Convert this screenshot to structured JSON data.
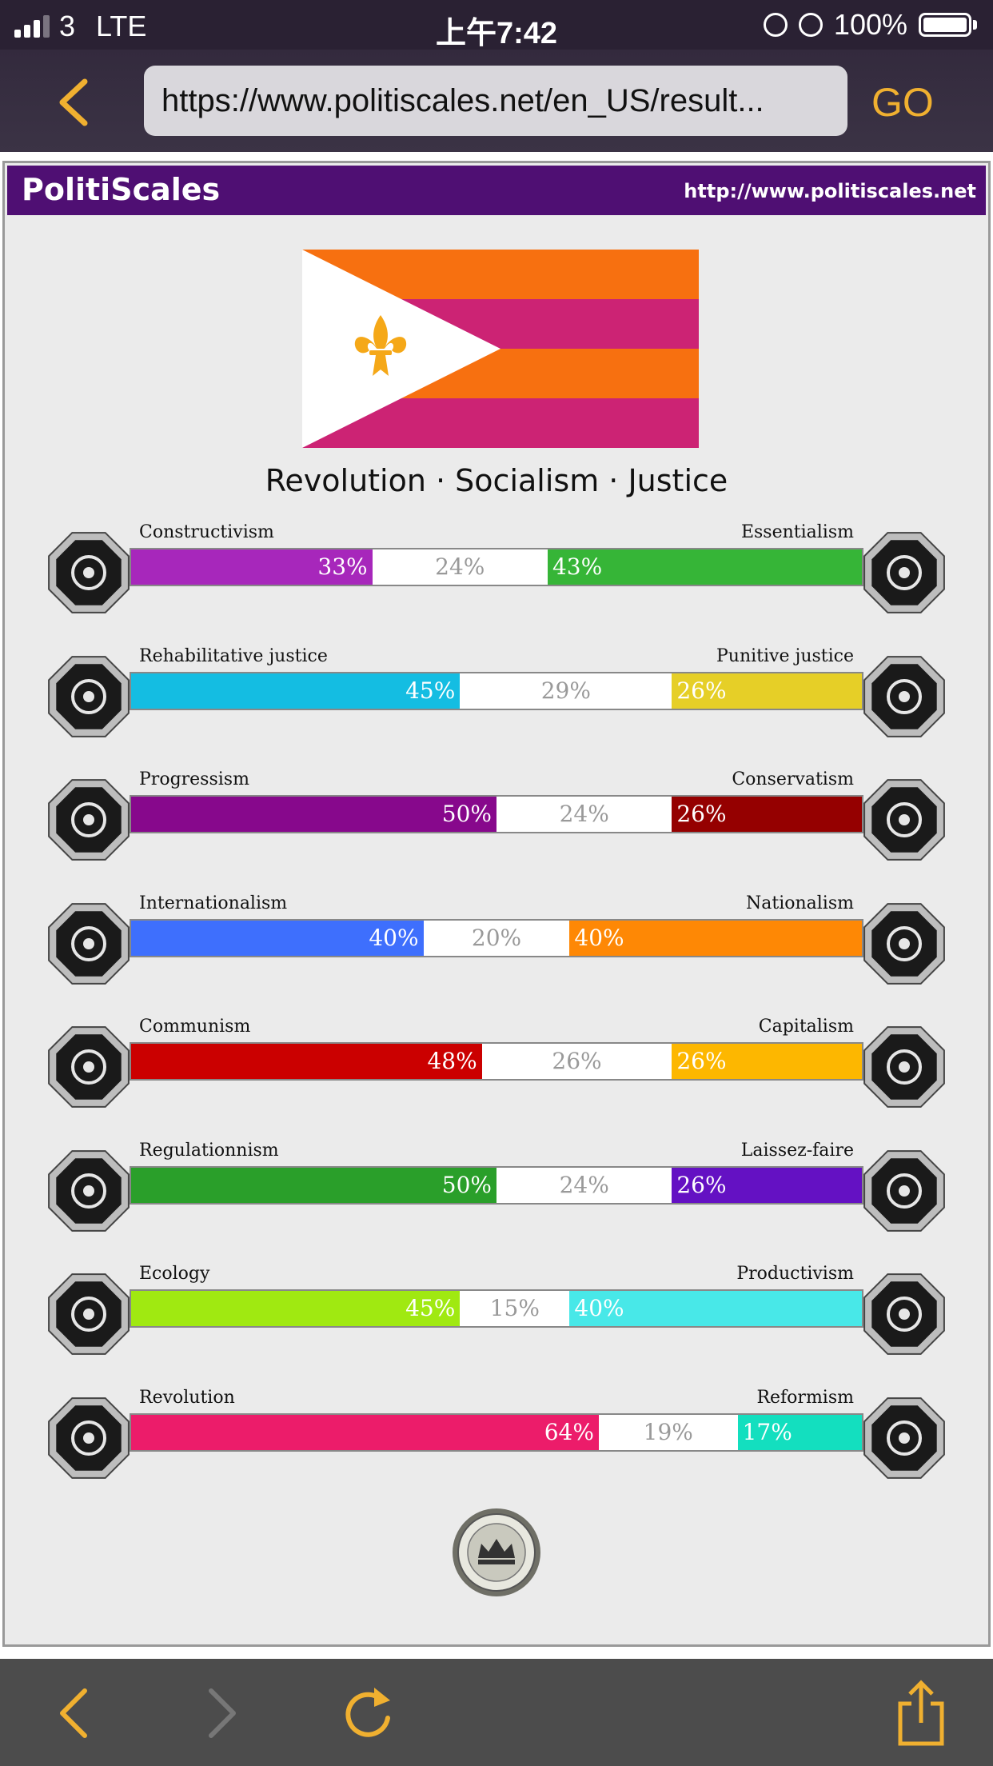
{
  "status_bar": {
    "carrier": "3",
    "network": "LTE",
    "time": "上午7:42",
    "battery": "100%",
    "icons": [
      "signal-icon",
      "orientation-lock-icon",
      "alarm-icon",
      "battery-icon"
    ]
  },
  "browser": {
    "url": "https://www.politiscales.net/en_US/result...",
    "go_label": "GO",
    "icons": [
      "back-chevron-icon",
      "forward-chevron-icon",
      "reload-icon",
      "share-icon"
    ]
  },
  "brand": {
    "name": "PolitiScales",
    "url": "http://www.politiscales.net",
    "color": "#4f0f73"
  },
  "flag": {
    "stripes": [
      "#f77010",
      "#cc2374",
      "#f77010",
      "#cc2374"
    ],
    "triangle": "#ffffff",
    "emblem": "fleur-de-lis-icon",
    "emblem_color": "#f5a818"
  },
  "motto": "Revolution · Socialism · Justice",
  "axes": [
    {
      "left_label": "Constructivism",
      "right_label": "Essentialism",
      "left": 33,
      "middle": 24,
      "right": 43,
      "left_color": "#a727bb",
      "right_color": "#36b537",
      "left_icon": "eye-icon",
      "right_icon": "dna-flower-icon"
    },
    {
      "left_label": "Rehabilitative justice",
      "right_label": "Punitive justice",
      "left": 45,
      "middle": 29,
      "right": 26,
      "left_color": "#14bde2",
      "right_color": "#e6cf27",
      "left_icon": "handshake-icon",
      "right_icon": "prison-bars-icon"
    },
    {
      "left_label": "Progressism",
      "right_label": "Conservatism",
      "left": 50,
      "middle": 24,
      "right": 26,
      "left_color": "#87088c",
      "right_color": "#950000",
      "left_icon": "rocket-icon",
      "right_icon": "quill-icon"
    },
    {
      "left_label": "Internationalism",
      "right_label": "Nationalism",
      "left": 40,
      "middle": 20,
      "right": 40,
      "left_color": "#3e6ffd",
      "right_color": "#fe8805",
      "left_icon": "globe-icon",
      "right_icon": "flag-icon"
    },
    {
      "left_label": "Communism",
      "right_label": "Capitalism",
      "left": 48,
      "middle": 26,
      "right": 26,
      "left_color": "#cb0000",
      "right_color": "#fdb700",
      "left_icon": "hammer-sickle-icon",
      "right_icon": "money-bag-icon"
    },
    {
      "left_label": "Regulationnism",
      "right_label": "Laissez-faire",
      "left": 50,
      "middle": 24,
      "right": 26,
      "left_color": "#2a9f2a",
      "right_color": "#6411c3",
      "left_icon": "ruler-icon",
      "right_icon": "butterfly-icon"
    },
    {
      "left_label": "Ecology",
      "right_label": "Productivism",
      "left": 45,
      "middle": 15,
      "right": 40,
      "left_color": "#a0e911",
      "right_color": "#48e8e8",
      "left_icon": "sprout-icon",
      "right_icon": "gear-icon"
    },
    {
      "left_label": "Revolution",
      "right_label": "Reformism",
      "left": 64,
      "middle": 19,
      "right": 17,
      "left_color": "#ec1c6a",
      "right_color": "#13dfbf",
      "left_icon": "torch-icon",
      "right_icon": "ballot-icon"
    }
  ],
  "footer_icon": "crown-seal-icon"
}
